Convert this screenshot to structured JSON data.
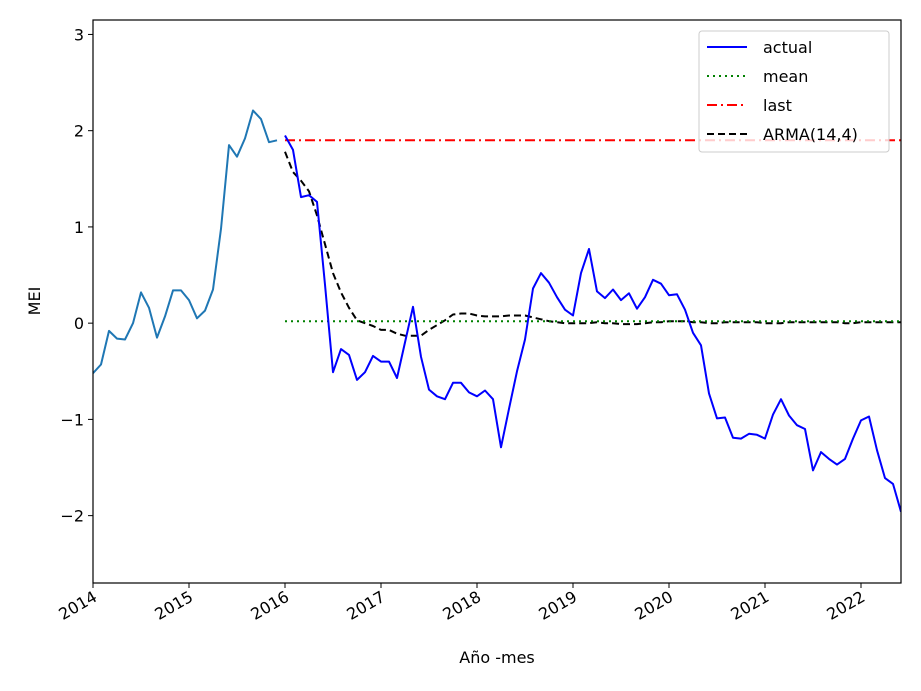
{
  "chart_data": {
    "type": "line",
    "title": "",
    "xlabel": "Año -mes",
    "ylabel": "MEI",
    "xlim": [
      "2014-01",
      "2022-06"
    ],
    "ylim": [
      -2.7,
      3.15
    ],
    "x_ticks": [
      "2014",
      "2015",
      "2016",
      "2017",
      "2018",
      "2019",
      "2020",
      "2021",
      "2022"
    ],
    "y_ticks": [
      -2,
      -1,
      0,
      1,
      2,
      3
    ],
    "grid": false,
    "legend_position": "top-right",
    "history": {
      "color": "#1f77b4",
      "points": [
        [
          "2014-01",
          -0.52
        ],
        [
          "2014-02",
          -0.43
        ],
        [
          "2014-03",
          -0.08
        ],
        [
          "2014-04",
          -0.16
        ],
        [
          "2014-05",
          -0.17
        ],
        [
          "2014-06",
          0.0
        ],
        [
          "2014-07",
          0.32
        ],
        [
          "2014-08",
          0.16
        ],
        [
          "2014-09",
          -0.15
        ],
        [
          "2014-10",
          0.07
        ],
        [
          "2014-11",
          0.34
        ],
        [
          "2014-12",
          0.34
        ],
        [
          "2015-01",
          0.24
        ],
        [
          "2015-02",
          0.05
        ],
        [
          "2015-03",
          0.13
        ],
        [
          "2015-04",
          0.35
        ],
        [
          "2015-05",
          0.98
        ],
        [
          "2015-06",
          1.85
        ],
        [
          "2015-07",
          1.73
        ],
        [
          "2015-08",
          1.92
        ],
        [
          "2015-09",
          2.21
        ],
        [
          "2015-10",
          2.12
        ],
        [
          "2015-11",
          1.88
        ],
        [
          "2015-12",
          1.9
        ]
      ]
    },
    "series": [
      {
        "name": "actual",
        "color": "#0000ff",
        "dash": "solid",
        "points": [
          [
            "2016-01",
            1.95
          ],
          [
            "2016-02",
            1.8
          ],
          [
            "2016-03",
            1.31
          ],
          [
            "2016-04",
            1.33
          ],
          [
            "2016-05",
            1.26
          ],
          [
            "2016-06",
            0.4
          ],
          [
            "2016-07",
            -0.51
          ],
          [
            "2016-08",
            -0.27
          ],
          [
            "2016-09",
            -0.33
          ],
          [
            "2016-10",
            -0.59
          ],
          [
            "2016-11",
            -0.51
          ],
          [
            "2016-12",
            -0.34
          ],
          [
            "2017-01",
            -0.4
          ],
          [
            "2017-02",
            -0.4
          ],
          [
            "2017-03",
            -0.57
          ],
          [
            "2017-04",
            -0.2
          ],
          [
            "2017-05",
            0.17
          ],
          [
            "2017-06",
            -0.35
          ],
          [
            "2017-07",
            -0.69
          ],
          [
            "2017-08",
            -0.76
          ],
          [
            "2017-09",
            -0.79
          ],
          [
            "2017-10",
            -0.62
          ],
          [
            "2017-11",
            -0.62
          ],
          [
            "2017-12",
            -0.72
          ],
          [
            "2018-01",
            -0.76
          ],
          [
            "2018-02",
            -0.7
          ],
          [
            "2018-03",
            -0.79
          ],
          [
            "2018-04",
            -1.29
          ],
          [
            "2018-05",
            -0.89
          ],
          [
            "2018-06",
            -0.5
          ],
          [
            "2018-07",
            -0.17
          ],
          [
            "2018-08",
            0.36
          ],
          [
            "2018-09",
            0.52
          ],
          [
            "2018-10",
            0.42
          ],
          [
            "2018-11",
            0.27
          ],
          [
            "2018-12",
            0.14
          ],
          [
            "2019-01",
            0.08
          ],
          [
            "2019-02",
            0.52
          ],
          [
            "2019-03",
            0.77
          ],
          [
            "2019-04",
            0.33
          ],
          [
            "2019-05",
            0.26
          ],
          [
            "2019-06",
            0.35
          ],
          [
            "2019-07",
            0.24
          ],
          [
            "2019-08",
            0.31
          ],
          [
            "2019-09",
            0.15
          ],
          [
            "2019-10",
            0.27
          ],
          [
            "2019-11",
            0.45
          ],
          [
            "2019-12",
            0.41
          ],
          [
            "2020-01",
            0.29
          ],
          [
            "2020-02",
            0.3
          ],
          [
            "2020-03",
            0.14
          ],
          [
            "2020-04",
            -0.1
          ],
          [
            "2020-05",
            -0.23
          ],
          [
            "2020-06",
            -0.73
          ],
          [
            "2020-07",
            -0.99
          ],
          [
            "2020-08",
            -0.98
          ],
          [
            "2020-09",
            -1.19
          ],
          [
            "2020-10",
            -1.2
          ],
          [
            "2020-11",
            -1.15
          ],
          [
            "2020-12",
            -1.16
          ],
          [
            "2021-01",
            -1.2
          ],
          [
            "2021-02",
            -0.95
          ],
          [
            "2021-03",
            -0.79
          ],
          [
            "2021-04",
            -0.96
          ],
          [
            "2021-05",
            -1.06
          ],
          [
            "2021-06",
            -1.1
          ],
          [
            "2021-07",
            -1.53
          ],
          [
            "2021-08",
            -1.34
          ],
          [
            "2021-09",
            -1.41
          ],
          [
            "2021-10",
            -1.47
          ],
          [
            "2021-11",
            -1.41
          ],
          [
            "2021-12",
            -1.2
          ],
          [
            "2022-01",
            -1.01
          ],
          [
            "2022-02",
            -0.97
          ],
          [
            "2022-03",
            -1.32
          ],
          [
            "2022-04",
            -1.61
          ],
          [
            "2022-05",
            -1.67
          ],
          [
            "2022-06",
            -1.96
          ]
        ]
      },
      {
        "name": "mean",
        "color": "#008000",
        "dash": "dotted",
        "points": [
          [
            "2016-01",
            0.02
          ],
          [
            "2022-06",
            0.02
          ]
        ]
      },
      {
        "name": "last",
        "color": "#ff0000",
        "dash": "dashdot",
        "points": [
          [
            "2016-01",
            1.9
          ],
          [
            "2022-06",
            1.9
          ]
        ]
      },
      {
        "name": "ARMA(14,4)",
        "color": "#000000",
        "dash": "dashed",
        "points": [
          [
            "2016-01",
            1.78
          ],
          [
            "2016-02",
            1.57
          ],
          [
            "2016-03",
            1.48
          ],
          [
            "2016-04",
            1.37
          ],
          [
            "2016-05",
            1.12
          ],
          [
            "2016-06",
            0.82
          ],
          [
            "2016-07",
            0.52
          ],
          [
            "2016-08",
            0.32
          ],
          [
            "2016-09",
            0.16
          ],
          [
            "2016-10",
            0.03
          ],
          [
            "2016-11",
            0.0
          ],
          [
            "2016-12",
            -0.03
          ],
          [
            "2017-01",
            -0.07
          ],
          [
            "2017-02",
            -0.07
          ],
          [
            "2017-03",
            -0.11
          ],
          [
            "2017-04",
            -0.13
          ],
          [
            "2017-05",
            -0.13
          ],
          [
            "2017-06",
            -0.13
          ],
          [
            "2017-07",
            -0.07
          ],
          [
            "2017-08",
            -0.02
          ],
          [
            "2017-09",
            0.03
          ],
          [
            "2017-10",
            0.09
          ],
          [
            "2017-11",
            0.1
          ],
          [
            "2017-12",
            0.1
          ],
          [
            "2018-01",
            0.08
          ],
          [
            "2018-02",
            0.07
          ],
          [
            "2018-03",
            0.07
          ],
          [
            "2018-04",
            0.07
          ],
          [
            "2018-05",
            0.08
          ],
          [
            "2018-06",
            0.08
          ],
          [
            "2018-07",
            0.08
          ],
          [
            "2018-08",
            0.06
          ],
          [
            "2018-09",
            0.04
          ],
          [
            "2018-10",
            0.02
          ],
          [
            "2018-11",
            0.01
          ],
          [
            "2018-12",
            0.0
          ],
          [
            "2019-01",
            0.0
          ],
          [
            "2019-02",
            0.0
          ],
          [
            "2019-03",
            0.0
          ],
          [
            "2019-04",
            0.01
          ],
          [
            "2019-05",
            0.0
          ],
          [
            "2019-06",
            0.0
          ],
          [
            "2019-07",
            -0.01
          ],
          [
            "2019-08",
            -0.01
          ],
          [
            "2019-09",
            -0.01
          ],
          [
            "2019-10",
            0.0
          ],
          [
            "2019-11",
            0.01
          ],
          [
            "2019-12",
            0.01
          ],
          [
            "2020-01",
            0.02
          ],
          [
            "2020-02",
            0.02
          ],
          [
            "2020-03",
            0.02
          ],
          [
            "2020-04",
            0.01
          ],
          [
            "2020-05",
            0.01
          ],
          [
            "2020-06",
            0.0
          ],
          [
            "2020-07",
            0.0
          ],
          [
            "2020-08",
            0.01
          ],
          [
            "2020-09",
            0.01
          ],
          [
            "2020-10",
            0.01
          ],
          [
            "2020-11",
            0.01
          ],
          [
            "2020-12",
            0.01
          ],
          [
            "2021-01",
            0.0
          ],
          [
            "2021-02",
            0.0
          ],
          [
            "2021-03",
            0.0
          ],
          [
            "2021-04",
            0.01
          ],
          [
            "2021-05",
            0.01
          ],
          [
            "2021-06",
            0.01
          ],
          [
            "2021-07",
            0.01
          ],
          [
            "2021-08",
            0.01
          ],
          [
            "2021-09",
            0.01
          ],
          [
            "2021-10",
            0.01
          ],
          [
            "2021-11",
            0.0
          ],
          [
            "2021-12",
            0.0
          ],
          [
            "2022-01",
            0.01
          ],
          [
            "2022-02",
            0.01
          ],
          [
            "2022-03",
            0.01
          ],
          [
            "2022-04",
            0.01
          ],
          [
            "2022-05",
            0.01
          ],
          [
            "2022-06",
            0.01
          ]
        ]
      }
    ]
  }
}
